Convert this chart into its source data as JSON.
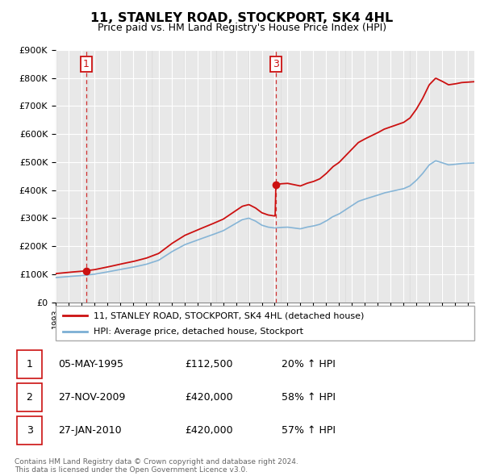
{
  "title": "11, STANLEY ROAD, STOCKPORT, SK4 4HL",
  "subtitle": "Price paid vs. HM Land Registry's House Price Index (HPI)",
  "ylim": [
    0,
    900000
  ],
  "xlim_start": 1993,
  "xlim_end": 2025.5,
  "legend_line1": "11, STANLEY ROAD, STOCKPORT, SK4 4HL (detached house)",
  "legend_line2": "HPI: Average price, detached house, Stockport",
  "sale1_label": "1",
  "sale1_date": "05-MAY-1995",
  "sale1_price": "£112,500",
  "sale1_hpi": "20% ↑ HPI",
  "sale1_x": 1995.37,
  "sale1_y": 112500,
  "sale2_label": "2",
  "sale2_date": "27-NOV-2009",
  "sale2_price": "£420,000",
  "sale2_hpi": "58% ↑ HPI",
  "sale2_x": 2009.9,
  "sale2_y": 420000,
  "sale3_label": "3",
  "sale3_date": "27-JAN-2010",
  "sale3_price": "£420,000",
  "sale3_hpi": "57% ↑ HPI",
  "sale3_x": 2010.07,
  "sale3_y": 420000,
  "footnote": "Contains HM Land Registry data © Crown copyright and database right 2024.\nThis data is licensed under the Open Government Licence v3.0.",
  "hpi_color": "#7bafd4",
  "price_color": "#cc1111",
  "grid_color": "#cccccc",
  "hatch_color": "#e8e8e8",
  "hatch_edge_color": "#d0d0d0",
  "label_box_color": "#cc1111",
  "legend_border_color": "#aaaaaa",
  "footnote_color": "#666666",
  "background_color": "#f5f5f5"
}
